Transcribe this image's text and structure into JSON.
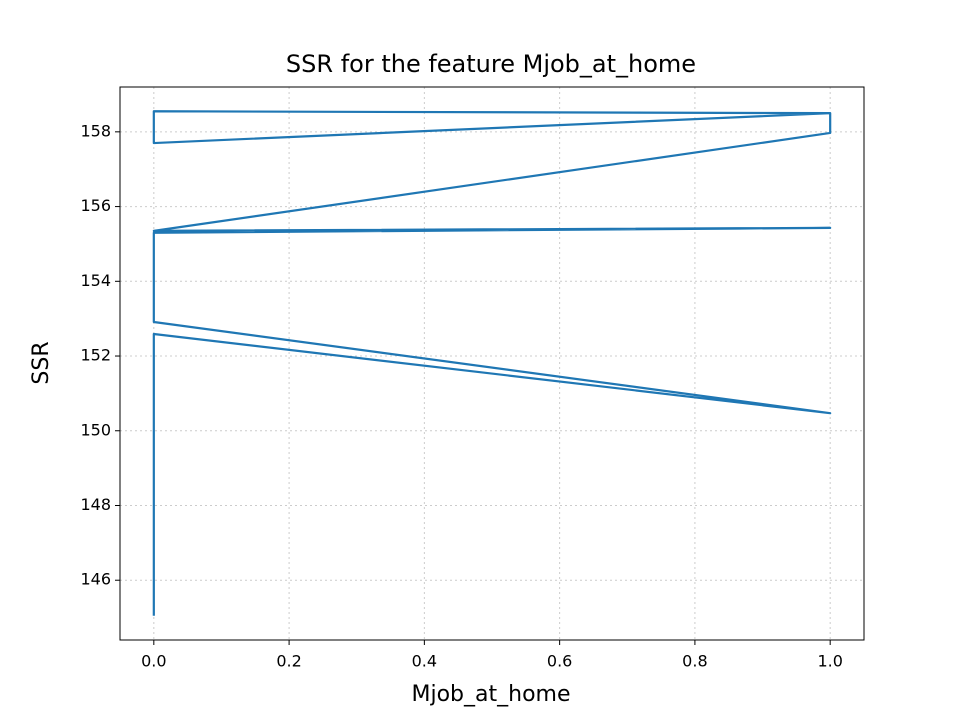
{
  "chart_data": {
    "type": "line",
    "title": "SSR for the feature Mjob_at_home",
    "xlabel": "Mjob_at_home",
    "ylabel": "SSR",
    "x": [
      0,
      0,
      0,
      1,
      0,
      0,
      1,
      0,
      1,
      1,
      0,
      0,
      1
    ],
    "series": [
      {
        "color": "#1f77b4",
        "values": [
          145.05,
          148.5,
          152.59,
          150.47,
          152.91,
          155.3,
          155.43,
          155.35,
          157.97,
          158.5,
          157.7,
          158.55,
          158.5
        ]
      }
    ],
    "xlim": [
      -0.05,
      1.05
    ],
    "ylim": [
      144.4,
      159.2
    ],
    "xticks": [
      {
        "value": 0,
        "label": "0.0"
      },
      0.2,
      0.4,
      0.6,
      0.8,
      {
        "value": 1,
        "label": "1.0"
      }
    ],
    "yticks": [
      146,
      148,
      150,
      152,
      154,
      156,
      158
    ],
    "grid": true
  }
}
